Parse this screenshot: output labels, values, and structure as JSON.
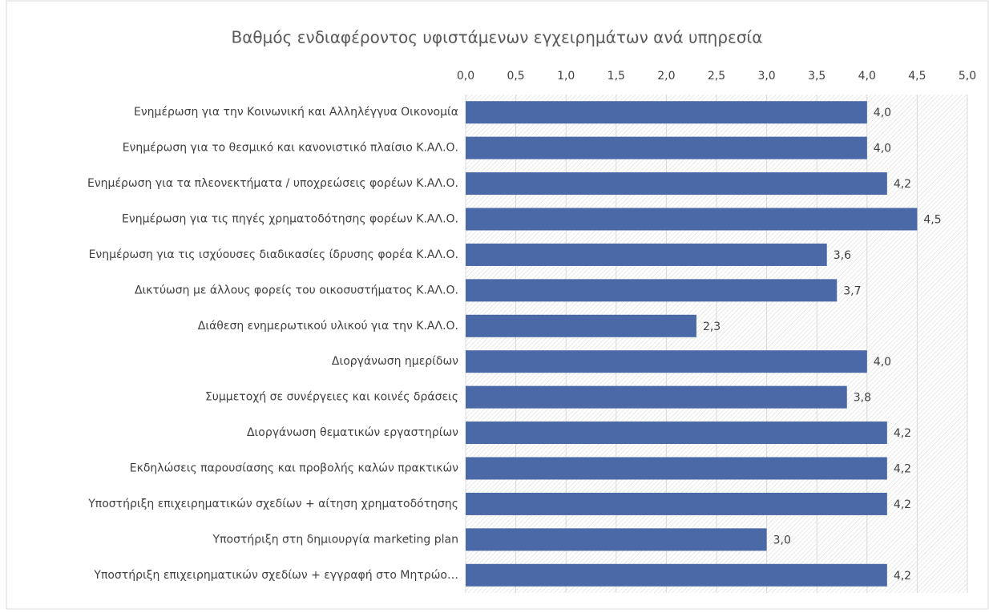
{
  "chart_data": {
    "type": "bar",
    "orientation": "horizontal",
    "title": "Βαθμός ενδιαφέροντος υφιστάμενων εγχειρημάτων ανά υπηρεσία",
    "categories": [
      "Ενημέρωση για την Κοινωνική και Αλληλέγγυα Οικονομία",
      "Ενημέρωση για το θεσμικό και κανονιστικό πλαίσιο Κ.ΑΛ.Ο.",
      "Ενημέρωση για τα πλεονεκτήματα / υποχρεώσεις φορέων Κ.ΑΛ.Ο.",
      "Ενημέρωση για τις πηγές χρηματοδότησης φορέων Κ.ΑΛ.Ο.",
      "Ενημέρωση για τις ισχύουσες διαδικασίες ίδρυσης φορέα Κ.ΑΛ.Ο.",
      "Δικτύωση με άλλους φορείς του οικοσυστήματος Κ.ΑΛ.Ο.",
      "Διάθεση ενημερωτικού υλικού για την Κ.ΑΛ.Ο.",
      "Διοργάνωση ημερίδων",
      "Συμμετοχή σε συνέργειες και κοινές δράσεις",
      "Διοργάνωση θεματικών εργαστηρίων",
      "Εκδηλώσεις παρουσίασης και προβολής καλών πρακτικών",
      "Υποστήριξη επιχειρηματικών σχεδίων + αίτηση χρηματοδότησης",
      "Υποστήριξη στη δημιουργία marketing plan",
      "Υποστήριξη επιχειρηματικών σχεδίων + εγγραφή στο Μητρώο…"
    ],
    "values": [
      4.0,
      4.0,
      4.2,
      4.5,
      3.6,
      3.7,
      2.3,
      4.0,
      3.8,
      4.2,
      4.2,
      4.2,
      3.0,
      4.2
    ],
    "value_labels": [
      "4,0",
      "4,0",
      "4,2",
      "4,5",
      "3,6",
      "3,7",
      "2,3",
      "4,0",
      "3,8",
      "4,2",
      "4,2",
      "4,2",
      "3,0",
      "4,2"
    ],
    "color": "#4a69a6",
    "xlim": [
      0,
      5
    ],
    "xticks": [
      {
        "value": 0,
        "label": "0,0"
      },
      {
        "value": 0.5,
        "label": "0,5"
      },
      {
        "value": 1,
        "label": "1,0"
      },
      {
        "value": 1.5,
        "label": "1,5"
      },
      {
        "value": 2,
        "label": "2,0"
      },
      {
        "value": 2.5,
        "label": "2,5"
      },
      {
        "value": 3,
        "label": "3,0"
      },
      {
        "value": 3.5,
        "label": "3,5"
      },
      {
        "value": 4,
        "label": "4,0"
      },
      {
        "value": 4.5,
        "label": "4,5"
      },
      {
        "value": 5,
        "label": "5,0"
      }
    ],
    "grid": true
  }
}
